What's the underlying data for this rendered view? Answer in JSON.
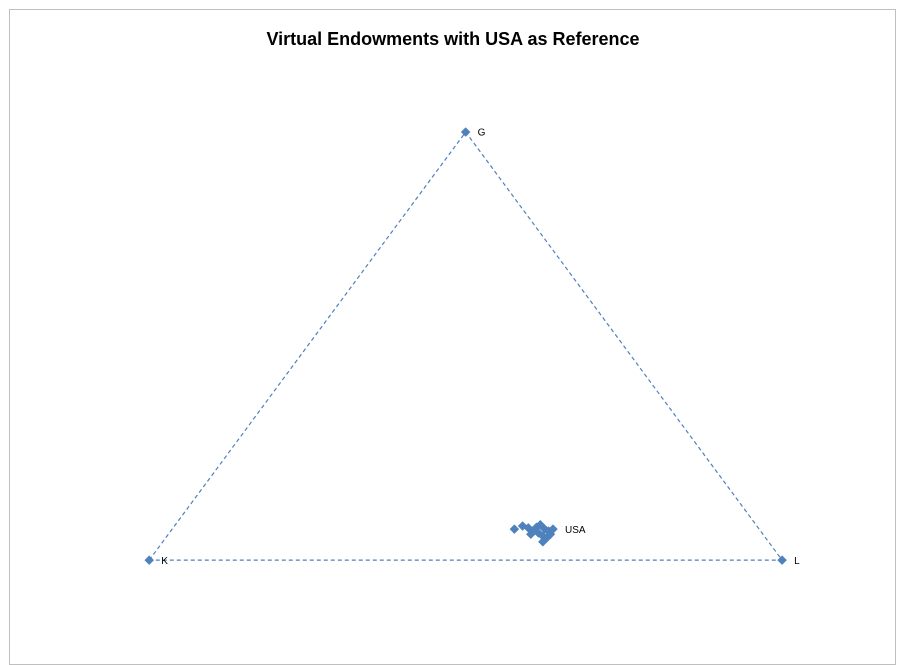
{
  "chart_data": {
    "type": "scatter",
    "title": "Virtual Endowments with USA as Reference",
    "xlim": [
      -0.22,
      1.18
    ],
    "ylim": [
      -0.15,
      0.87
    ],
    "series": [
      {
        "color": "#4f81bd",
        "line": "dashed",
        "closed": true,
        "x": [
          0,
          0.5,
          1
        ],
        "values": [
          0,
          0.677,
          0
        ],
        "labels": [
          "K",
          "G",
          "L"
        ]
      },
      {
        "color": "#4f81bd",
        "x": [
          0.577,
          0.59,
          0.599,
          0.606,
          0.612,
          0.618,
          0.625,
          0.631,
          0.634,
          0.622,
          0.615,
          0.603,
          0.628,
          0.622,
          0.609
        ],
        "values": [
          0.049,
          0.054,
          0.051,
          0.046,
          0.052,
          0.056,
          0.049,
          0.046,
          0.041,
          0.038,
          0.043,
          0.041,
          0.035,
          0.029,
          0.048
        ]
      },
      {
        "color": "#4f81bd",
        "x": [
          0.638
        ],
        "values": [
          0.049
        ],
        "labels": [
          "USA"
        ]
      }
    ]
  }
}
